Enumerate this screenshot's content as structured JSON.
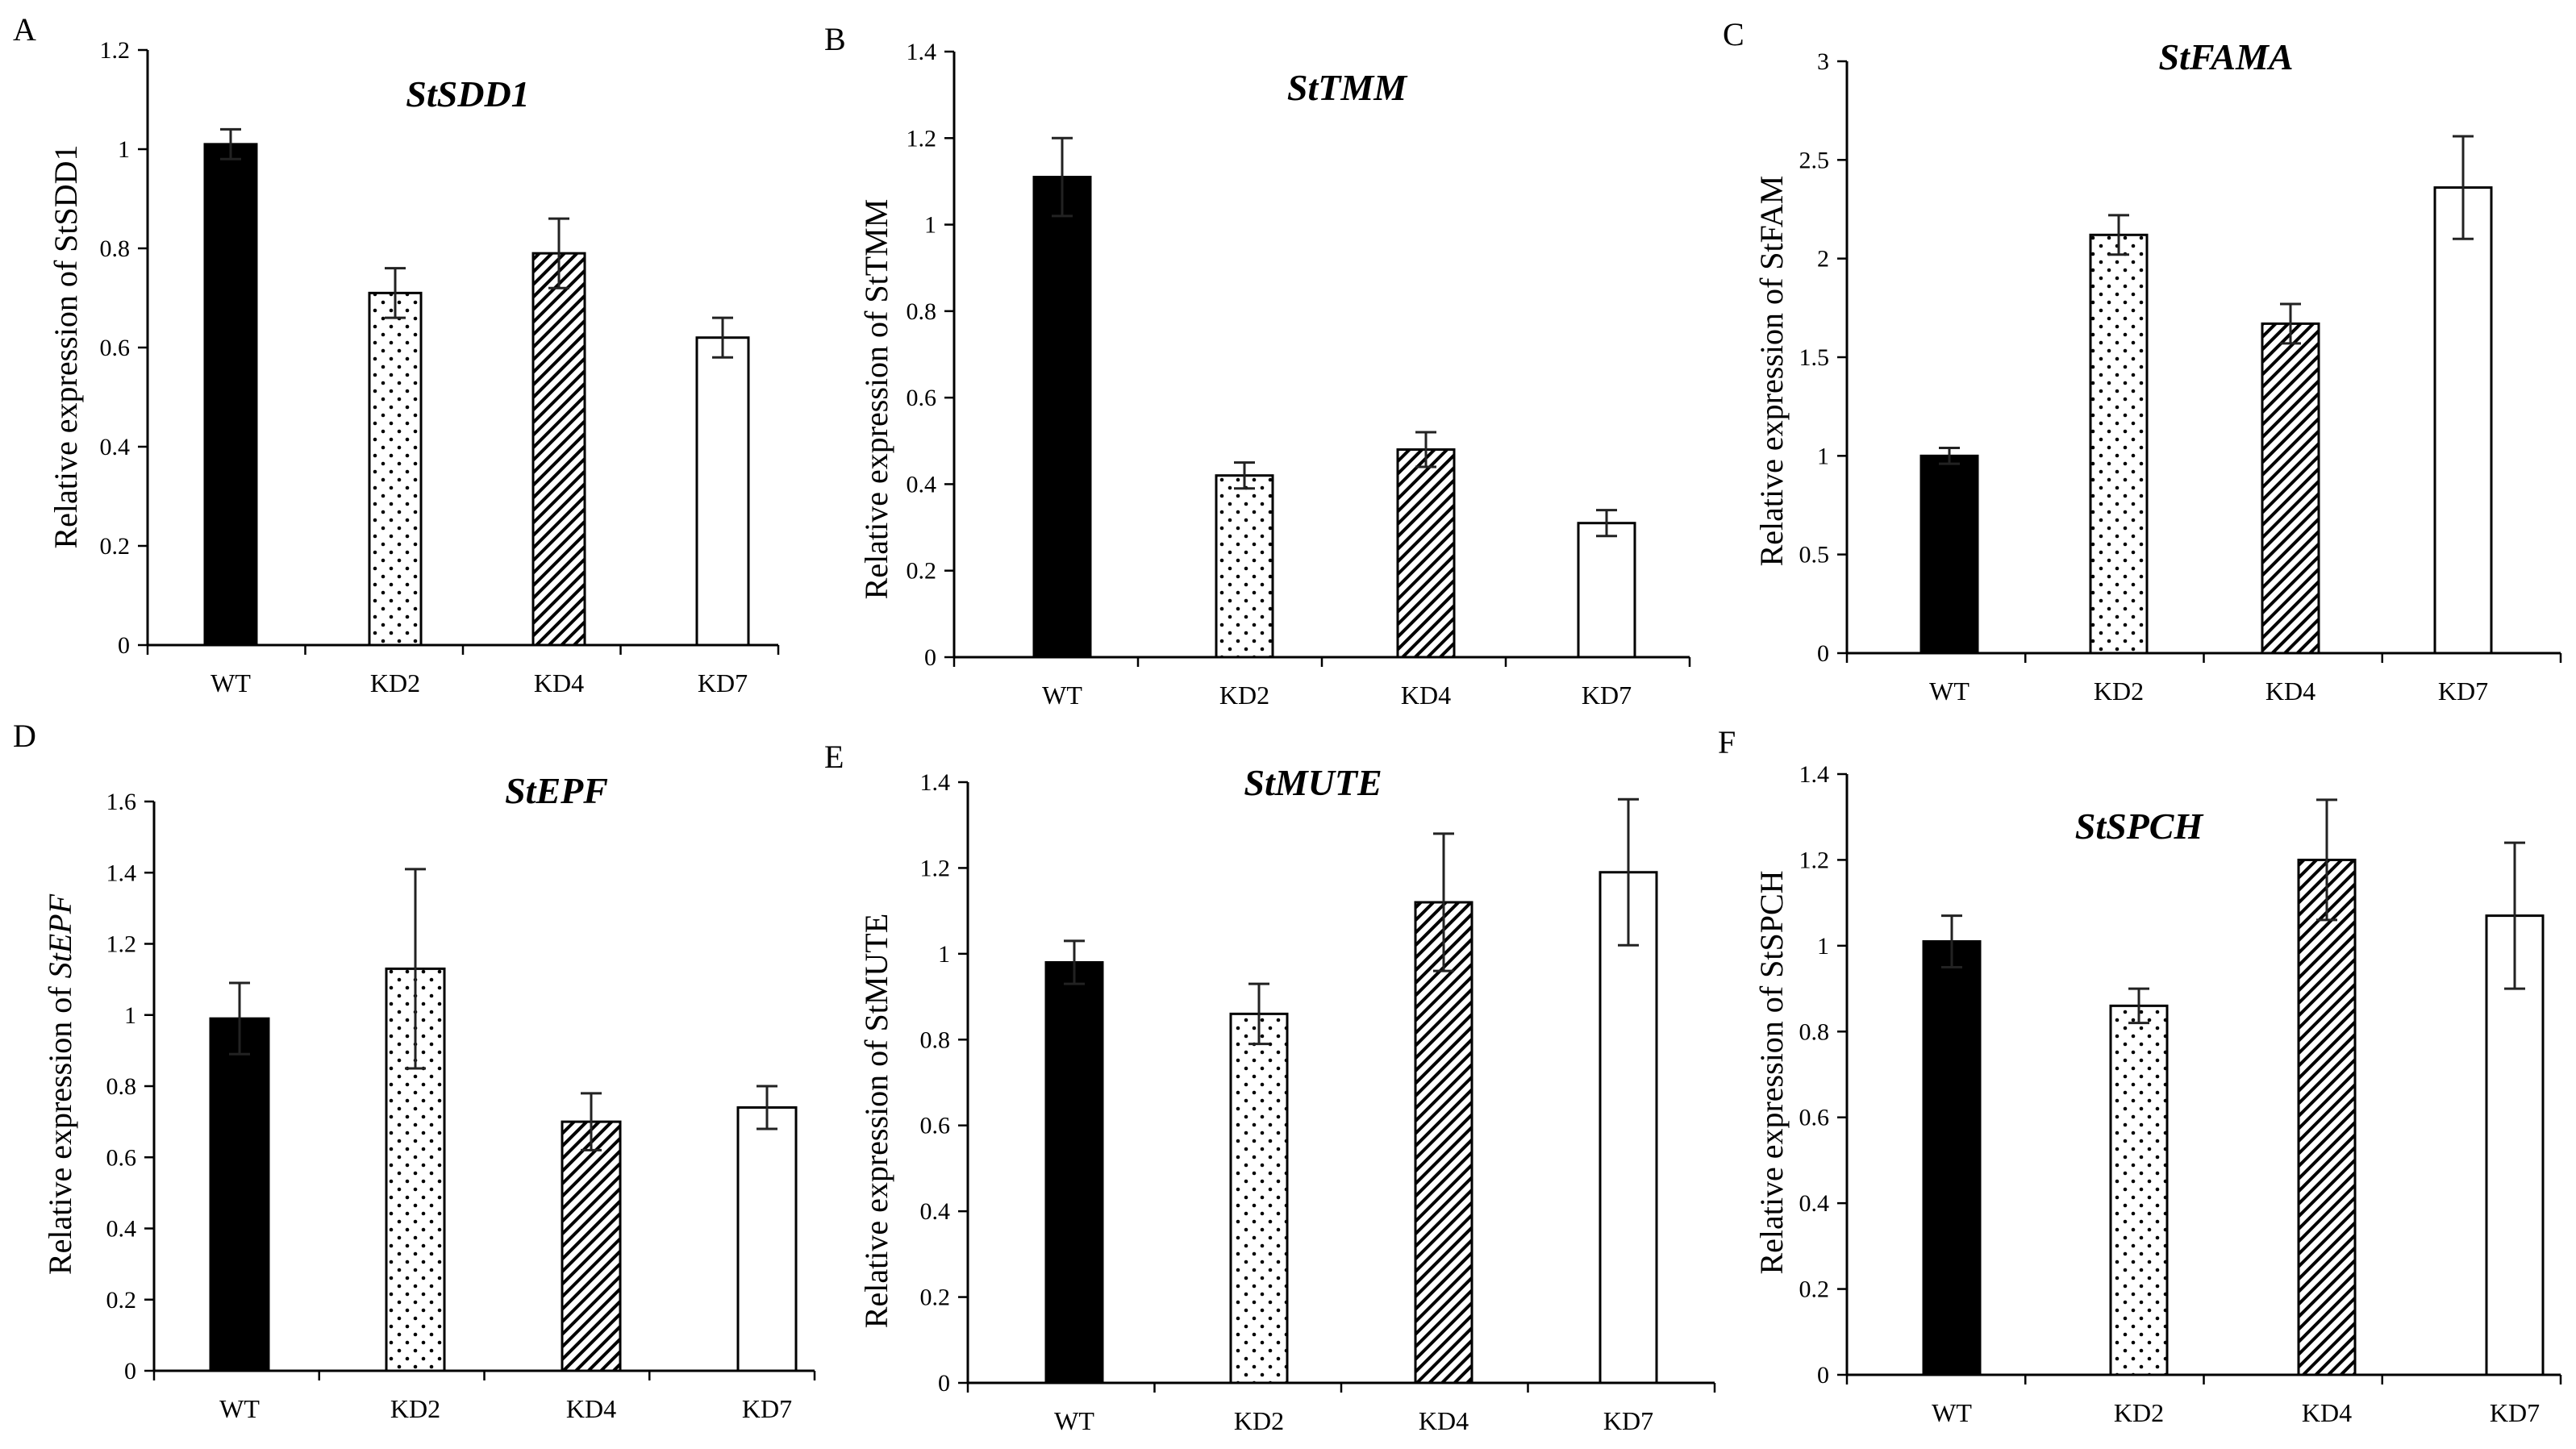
{
  "figure": {
    "panels": [
      "A",
      "B",
      "C",
      "D",
      "E",
      "F"
    ]
  },
  "patterns": {
    "WT": "solid-black",
    "KD2": "dots",
    "KD4": "diagonal-hatch",
    "KD7": "white"
  },
  "colors": {
    "axis": "#000000",
    "bar_fill_solid": "#000000",
    "bar_fill_empty": "#ffffff"
  },
  "chart_data": [
    {
      "panel": "A",
      "type": "bar",
      "title": "StSDD1",
      "ylabel": "Relative expression of StSDD1",
      "ylabel_parts": [
        {
          "text": "Relative expression of StSDD1",
          "italic": false
        }
      ],
      "categories": [
        "WT",
        "KD2",
        "KD4",
        "KD7"
      ],
      "values": [
        1.01,
        0.71,
        0.79,
        0.62
      ],
      "errors": [
        0.03,
        0.05,
        0.07,
        0.04
      ],
      "ylim": [
        0,
        1.2
      ],
      "yticks": [
        0,
        0.2,
        0.4,
        0.6,
        0.8,
        1,
        1.2
      ],
      "ytick_labels": [
        "0",
        "0.2",
        "0.4",
        "0.6",
        "0.8",
        "1",
        "1.2"
      ]
    },
    {
      "panel": "B",
      "type": "bar",
      "title": "StTMM",
      "ylabel": "Relative expression of StTMM",
      "ylabel_parts": [
        {
          "text": "Relative expression of StTMM",
          "italic": false
        }
      ],
      "categories": [
        "WT",
        "KD2",
        "KD4",
        "KD7"
      ],
      "values": [
        1.11,
        0.42,
        0.48,
        0.31
      ],
      "errors": [
        0.09,
        0.03,
        0.04,
        0.03
      ],
      "ylim": [
        0,
        1.4
      ],
      "yticks": [
        0,
        0.2,
        0.4,
        0.6,
        0.8,
        1,
        1.2,
        1.4
      ],
      "ytick_labels": [
        "0",
        "0.2",
        "0.4",
        "0.6",
        "0.8",
        "1",
        "1.2",
        "1.4"
      ]
    },
    {
      "panel": "C",
      "type": "bar",
      "title": "StFAMA",
      "ylabel": "Relative expression of StFAM",
      "ylabel_parts": [
        {
          "text": "Relative expression of StFAM",
          "italic": false
        }
      ],
      "categories": [
        "WT",
        "KD2",
        "KD4",
        "KD7"
      ],
      "values": [
        1.0,
        2.12,
        1.67,
        2.36
      ],
      "errors": [
        0.04,
        0.1,
        0.1,
        0.26
      ],
      "ylim": [
        0,
        3
      ],
      "yticks": [
        0,
        0.5,
        1,
        1.5,
        2,
        2.5,
        3
      ],
      "ytick_labels": [
        "0",
        "0.5",
        "1",
        "1.5",
        "2",
        "2.5",
        "3"
      ]
    },
    {
      "panel": "D",
      "type": "bar",
      "title": "StEPF",
      "ylabel": "Relative expression of StEPF",
      "ylabel_parts": [
        {
          "text": "Relative expression of ",
          "italic": false
        },
        {
          "text": "StEPF",
          "italic": true
        }
      ],
      "categories": [
        "WT",
        "KD2",
        "KD4",
        "KD7"
      ],
      "values": [
        0.99,
        1.13,
        0.7,
        0.74
      ],
      "errors": [
        0.1,
        0.28,
        0.08,
        0.06
      ],
      "ylim": [
        0,
        1.6
      ],
      "yticks": [
        0,
        0.2,
        0.4,
        0.6,
        0.8,
        1,
        1.2,
        1.4,
        1.6
      ],
      "ytick_labels": [
        "0",
        "0.2",
        "0.4",
        "0.6",
        "0.8",
        "1",
        "1.2",
        "1.4",
        "1.6"
      ]
    },
    {
      "panel": "E",
      "type": "bar",
      "title": "StMUTE",
      "ylabel": "Relative expression of StMUTE",
      "ylabel_parts": [
        {
          "text": "Relative expression of StMUTE",
          "italic": false
        }
      ],
      "categories": [
        "WT",
        "KD2",
        "KD4",
        "KD7"
      ],
      "values": [
        0.98,
        0.86,
        1.12,
        1.19
      ],
      "errors": [
        0.05,
        0.07,
        0.16,
        0.17
      ],
      "ylim": [
        0,
        1.4
      ],
      "yticks": [
        0,
        0.2,
        0.4,
        0.6,
        0.8,
        1,
        1.2,
        1.4
      ],
      "ytick_labels": [
        "0",
        "0.2",
        "0.4",
        "0.6",
        "0.8",
        "1",
        "1.2",
        "1.4"
      ]
    },
    {
      "panel": "F",
      "type": "bar",
      "title": "StSPCH",
      "ylabel": "Relative expression of StSPCH",
      "ylabel_parts": [
        {
          "text": "Relative expression of StSPCH",
          "italic": false
        }
      ],
      "categories": [
        "WT",
        "KD2",
        "KD4",
        "KD7"
      ],
      "values": [
        1.01,
        0.86,
        1.2,
        1.07
      ],
      "errors": [
        0.06,
        0.04,
        0.14,
        0.17
      ],
      "ylim": [
        0,
        1.4
      ],
      "yticks": [
        0,
        0.2,
        0.4,
        0.6,
        0.8,
        1,
        1.2,
        1.4
      ],
      "ytick_labels": [
        "0",
        "0.2",
        "0.4",
        "0.6",
        "0.8",
        "1",
        "1.2",
        "1.4"
      ]
    }
  ]
}
